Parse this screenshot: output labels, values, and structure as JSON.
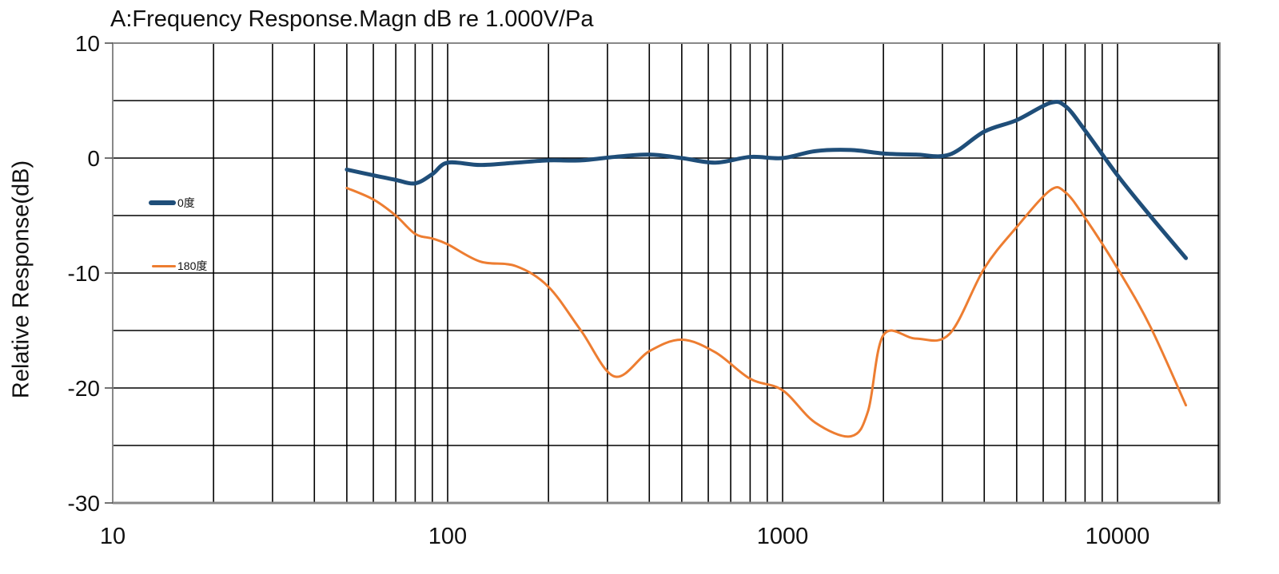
{
  "chart_data": {
    "type": "line",
    "title": "A:Frequency Response.Magn dB re 1.000V/Pa",
    "xlabel": "",
    "ylabel": "Relative Response(dB)",
    "xscale": "log",
    "xlim": [
      10,
      20000
    ],
    "ylim": [
      -30,
      10
    ],
    "x_tick_labels": [
      "10",
      "100",
      "1000",
      "10000"
    ],
    "y_tick_labels": [
      "10",
      "0",
      "-10",
      "-20",
      "-30"
    ],
    "grid": true,
    "legend_position": "left-inside",
    "series": [
      {
        "name": "0度",
        "color": "#1F4E79",
        "line_width": 5,
        "points": [
          [
            50,
            -1.0
          ],
          [
            60,
            -1.5
          ],
          [
            70,
            -1.9
          ],
          [
            80,
            -2.2
          ],
          [
            90,
            -1.4
          ],
          [
            100,
            -0.4
          ],
          [
            125,
            -0.6
          ],
          [
            160,
            -0.4
          ],
          [
            200,
            -0.2
          ],
          [
            250,
            -0.2
          ],
          [
            315,
            0.1
          ],
          [
            400,
            0.3
          ],
          [
            500,
            0.0
          ],
          [
            630,
            -0.4
          ],
          [
            800,
            0.1
          ],
          [
            1000,
            0.0
          ],
          [
            1250,
            0.6
          ],
          [
            1600,
            0.7
          ],
          [
            2000,
            0.4
          ],
          [
            2500,
            0.3
          ],
          [
            3150,
            0.3
          ],
          [
            4000,
            2.3
          ],
          [
            5000,
            3.3
          ],
          [
            6300,
            4.8
          ],
          [
            7000,
            4.5
          ],
          [
            8000,
            2.4
          ],
          [
            10000,
            -1.5
          ],
          [
            12500,
            -5.0
          ],
          [
            16000,
            -8.7
          ]
        ]
      },
      {
        "name": "180度",
        "color": "#ED7D31",
        "line_width": 3,
        "points": [
          [
            50,
            -2.6
          ],
          [
            60,
            -3.6
          ],
          [
            70,
            -5.0
          ],
          [
            80,
            -6.6
          ],
          [
            90,
            -7.0
          ],
          [
            100,
            -7.5
          ],
          [
            125,
            -9.0
          ],
          [
            160,
            -9.4
          ],
          [
            200,
            -11.2
          ],
          [
            250,
            -15.0
          ],
          [
            315,
            -19.0
          ],
          [
            400,
            -16.8
          ],
          [
            500,
            -15.8
          ],
          [
            630,
            -16.9
          ],
          [
            800,
            -19.2
          ],
          [
            1000,
            -20.2
          ],
          [
            1250,
            -23.0
          ],
          [
            1600,
            -24.2
          ],
          [
            1800,
            -22.0
          ],
          [
            2000,
            -15.4
          ],
          [
            2500,
            -15.7
          ],
          [
            3150,
            -15.3
          ],
          [
            4000,
            -9.6
          ],
          [
            5000,
            -6.0
          ],
          [
            6300,
            -2.8
          ],
          [
            7000,
            -3.0
          ],
          [
            8000,
            -5.2
          ],
          [
            10000,
            -9.6
          ],
          [
            12500,
            -14.6
          ],
          [
            16000,
            -21.5
          ]
        ]
      }
    ]
  },
  "legend": {
    "items": [
      {
        "label": "0度",
        "color": "#1F4E79"
      },
      {
        "label": "180度",
        "color": "#ED7D31"
      }
    ]
  }
}
